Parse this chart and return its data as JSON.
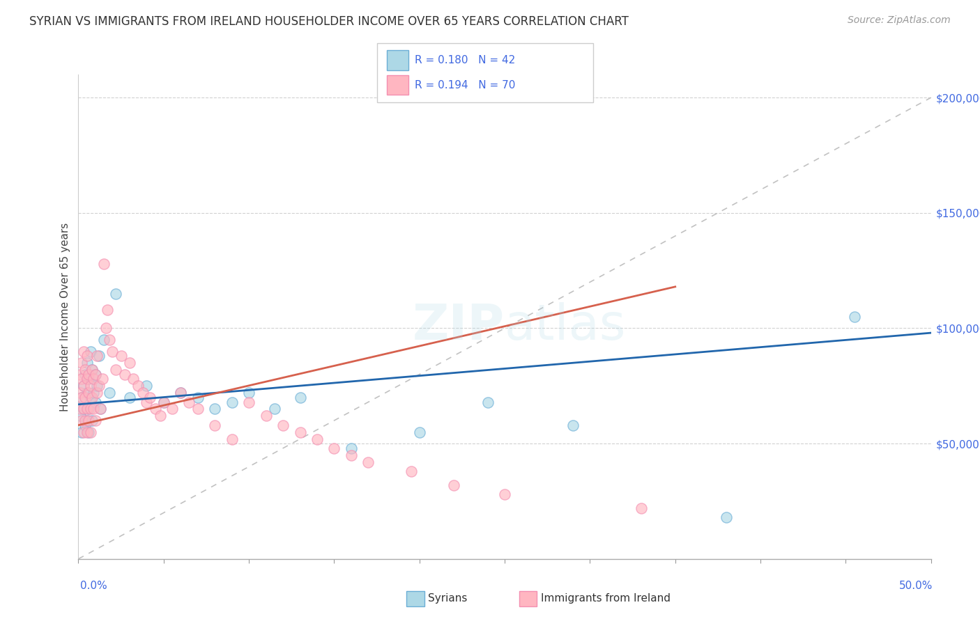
{
  "title": "SYRIAN VS IMMIGRANTS FROM IRELAND HOUSEHOLDER INCOME OVER 65 YEARS CORRELATION CHART",
  "source": "Source: ZipAtlas.com",
  "ylabel": "Householder Income Over 65 years",
  "xlim": [
    0.0,
    0.5
  ],
  "ylim": [
    0,
    210000
  ],
  "yticks": [
    50000,
    100000,
    150000,
    200000
  ],
  "ytick_labels": [
    "$50,000",
    "$100,000",
    "$150,000",
    "$200,000"
  ],
  "syrian_color": "#ADD8E6",
  "ireland_color": "#FFB6C1",
  "syrian_edge_color": "#6baed6",
  "ireland_edge_color": "#f48fb1",
  "syrian_line_color": "#2166ac",
  "ireland_line_color": "#d6604d",
  "diagonal_color": "#BBBBBB",
  "background_color": "#FFFFFF",
  "watermark_text": "ZIPatlas",
  "legend_r1": "R = 0.180",
  "legend_n1": "N = 42",
  "legend_r2": "R = 0.194",
  "legend_n2": "N = 70",
  "syrians_x": [
    0.001,
    0.002,
    0.002,
    0.003,
    0.003,
    0.004,
    0.004,
    0.005,
    0.005,
    0.005,
    0.006,
    0.006,
    0.006,
    0.007,
    0.007,
    0.008,
    0.008,
    0.009,
    0.01,
    0.01,
    0.011,
    0.012,
    0.013,
    0.015,
    0.018,
    0.022,
    0.03,
    0.04,
    0.05,
    0.06,
    0.07,
    0.08,
    0.09,
    0.1,
    0.115,
    0.13,
    0.16,
    0.2,
    0.24,
    0.29,
    0.38,
    0.455
  ],
  "syrians_y": [
    62000,
    70000,
    55000,
    75000,
    65000,
    80000,
    58000,
    72000,
    85000,
    60000,
    78000,
    65000,
    55000,
    90000,
    70000,
    82000,
    60000,
    72000,
    68000,
    80000,
    75000,
    88000,
    65000,
    95000,
    72000,
    115000,
    70000,
    75000,
    68000,
    72000,
    70000,
    65000,
    68000,
    72000,
    65000,
    70000,
    48000,
    55000,
    68000,
    58000,
    18000,
    105000
  ],
  "ireland_x": [
    0.001,
    0.001,
    0.001,
    0.002,
    0.002,
    0.002,
    0.002,
    0.003,
    0.003,
    0.003,
    0.003,
    0.004,
    0.004,
    0.004,
    0.005,
    0.005,
    0.005,
    0.005,
    0.006,
    0.006,
    0.006,
    0.007,
    0.007,
    0.007,
    0.008,
    0.008,
    0.009,
    0.009,
    0.01,
    0.01,
    0.011,
    0.011,
    0.012,
    0.013,
    0.014,
    0.015,
    0.016,
    0.017,
    0.018,
    0.02,
    0.022,
    0.025,
    0.027,
    0.03,
    0.032,
    0.035,
    0.038,
    0.04,
    0.042,
    0.045,
    0.048,
    0.05,
    0.055,
    0.06,
    0.065,
    0.07,
    0.08,
    0.09,
    0.1,
    0.11,
    0.12,
    0.13,
    0.14,
    0.15,
    0.16,
    0.17,
    0.195,
    0.22,
    0.25,
    0.33
  ],
  "ireland_y": [
    72000,
    65000,
    80000,
    78000,
    70000,
    85000,
    60000,
    90000,
    75000,
    65000,
    55000,
    82000,
    70000,
    60000,
    78000,
    65000,
    88000,
    55000,
    72000,
    80000,
    60000,
    75000,
    65000,
    55000,
    82000,
    70000,
    78000,
    65000,
    80000,
    60000,
    72000,
    88000,
    75000,
    65000,
    78000,
    128000,
    100000,
    108000,
    95000,
    90000,
    82000,
    88000,
    80000,
    85000,
    78000,
    75000,
    72000,
    68000,
    70000,
    65000,
    62000,
    68000,
    65000,
    72000,
    68000,
    65000,
    58000,
    52000,
    68000,
    62000,
    58000,
    55000,
    52000,
    48000,
    45000,
    42000,
    38000,
    32000,
    28000,
    22000
  ]
}
